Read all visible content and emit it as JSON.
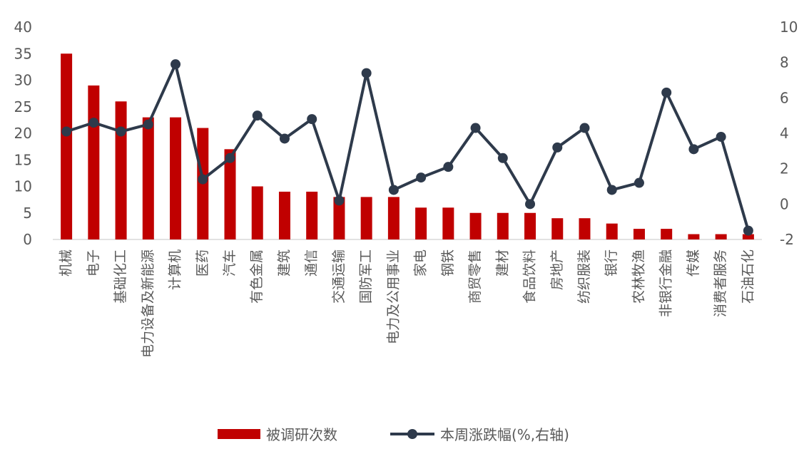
{
  "chart_data": {
    "type": "bar",
    "categories": [
      "机械",
      "电子",
      "基础化工",
      "电力设备及新能源",
      "计算机",
      "医药",
      "汽车",
      "有色金属",
      "建筑",
      "通信",
      "交通运输",
      "国防军工",
      "电力及公用事业",
      "家电",
      "钢铁",
      "商贸零售",
      "建材",
      "食品饮料",
      "房地产",
      "纺织服装",
      "银行",
      "农林牧渔",
      "非银行金融",
      "传媒",
      "消费者服务",
      "石油石化"
    ],
    "series": [
      {
        "name": "被调研次数",
        "type": "bar",
        "axis": "left",
        "color": "#c00000",
        "values": [
          35,
          29,
          26,
          23,
          23,
          21,
          17,
          10,
          9,
          9,
          8,
          8,
          8,
          6,
          6,
          5,
          5,
          5,
          4,
          4,
          3,
          2,
          2,
          1,
          1,
          1
        ]
      },
      {
        "name": "本周涨跌幅(%,右轴)",
        "type": "line",
        "axis": "right",
        "color": "#2e3a4b",
        "values": [
          4.1,
          4.6,
          4.1,
          4.5,
          7.9,
          1.4,
          2.6,
          5.0,
          3.7,
          4.8,
          0.2,
          7.4,
          0.8,
          1.5,
          2.1,
          4.3,
          2.6,
          0.0,
          3.2,
          4.3,
          0.8,
          1.2,
          6.3,
          3.1,
          3.8,
          -1.5
        ]
      }
    ],
    "y_left": {
      "min": 0,
      "max": 40,
      "ticks": [
        "0",
        "5",
        "10",
        "15",
        "20",
        "25",
        "30",
        "35",
        "40"
      ]
    },
    "y_right": {
      "min": -2,
      "max": 10,
      "ticks": [
        "-2",
        "0",
        "2",
        "4",
        "6",
        "8",
        "10"
      ]
    },
    "grid": false,
    "legend_position": "bottom"
  }
}
